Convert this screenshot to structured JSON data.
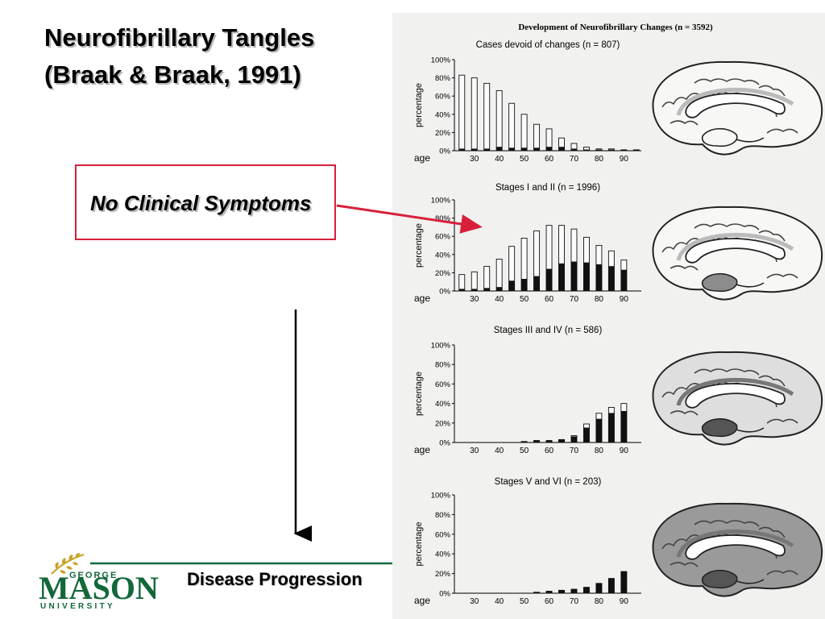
{
  "slide": {
    "title_line1": "Neurofibrillary Tangles",
    "title_line2": "(Braak & Braak, 1991)",
    "symptom_label": "No Clinical Symptoms",
    "progression_label": "Disease Progression",
    "accent_color": "#d8203a"
  },
  "logo": {
    "top": "GEORGE",
    "main": "MASON",
    "bottom": "UNIVERSITY",
    "color": "#13683a"
  },
  "figure_title": "Development of Neurofibrillary Changes (n = 3592)",
  "chart_data": [
    {
      "type": "bar",
      "title": "Cases devoid of changes (n = 807)",
      "ylabel": "percentage",
      "xlabel": "age",
      "x_ticks": [
        "30",
        "40",
        "50",
        "60",
        "70",
        "80",
        "90"
      ],
      "y_ticks": [
        "0%",
        "20%",
        "40%",
        "60%",
        "80%",
        "100%"
      ],
      "ylim": [
        0,
        100
      ],
      "categories": [
        25,
        30,
        35,
        40,
        45,
        50,
        55,
        60,
        65,
        70,
        75,
        80,
        85,
        90,
        95
      ],
      "series": [
        {
          "values": [
            83,
            80,
            74,
            66,
            52,
            40,
            29,
            24,
            14,
            8,
            4,
            2,
            2,
            1,
            1
          ]
        },
        {
          "values": [
            2,
            2,
            2,
            4,
            3,
            3,
            3,
            4,
            4,
            2,
            1,
            1,
            1,
            1,
            1
          ]
        }
      ],
      "brain_shading": "none"
    },
    {
      "type": "bar",
      "title": "Stages I and II (n = 1996)",
      "ylabel": "percentage",
      "xlabel": "age",
      "x_ticks": [
        "30",
        "40",
        "50",
        "60",
        "70",
        "80",
        "90"
      ],
      "y_ticks": [
        "0%",
        "20%",
        "40%",
        "60%",
        "80%",
        "100%"
      ],
      "ylim": [
        0,
        100
      ],
      "categories": [
        25,
        30,
        35,
        40,
        45,
        50,
        55,
        60,
        65,
        70,
        75,
        80,
        85,
        90,
        95
      ],
      "series": [
        {
          "values": [
            18,
            21,
            27,
            35,
            49,
            58,
            66,
            72,
            72,
            68,
            59,
            50,
            44,
            34,
            0
          ]
        },
        {
          "values": [
            2,
            2,
            3,
            4,
            11,
            13,
            16,
            24,
            30,
            32,
            31,
            29,
            27,
            23,
            0
          ]
        }
      ],
      "brain_shading": "entorhinal"
    },
    {
      "type": "bar",
      "title": "Stages III and IV (n = 586)",
      "ylabel": "percentage",
      "xlabel": "age",
      "x_ticks": [
        "30",
        "40",
        "50",
        "60",
        "70",
        "80",
        "90"
      ],
      "y_ticks": [
        "0%",
        "20%",
        "40%",
        "60%",
        "80%",
        "100%"
      ],
      "ylim": [
        0,
        100
      ],
      "categories": [
        50,
        55,
        60,
        65,
        70,
        75,
        80,
        85,
        90
      ],
      "series": [
        {
          "values": [
            1,
            2,
            2,
            3,
            7,
            19,
            30,
            36,
            40
          ]
        },
        {
          "values": [
            1,
            2,
            2,
            3,
            6,
            15,
            24,
            30,
            32
          ]
        }
      ],
      "brain_shading": "limbic"
    },
    {
      "type": "bar",
      "title": "Stages V and VI (n = 203)",
      "ylabel": "percentage",
      "xlabel": "age",
      "x_ticks": [
        "30",
        "40",
        "50",
        "60",
        "70",
        "80",
        "90"
      ],
      "y_ticks": [
        "0%",
        "20%",
        "40%",
        "60%",
        "80%",
        "100%"
      ],
      "ylim": [
        0,
        100
      ],
      "categories": [
        55,
        60,
        65,
        70,
        75,
        80,
        85,
        90
      ],
      "series": [
        {
          "values": [
            1,
            2,
            3,
            4,
            6,
            10,
            15,
            22
          ]
        },
        {
          "values": [
            1,
            2,
            3,
            4,
            6,
            10,
            15,
            22
          ]
        }
      ],
      "brain_shading": "isocortex"
    }
  ]
}
